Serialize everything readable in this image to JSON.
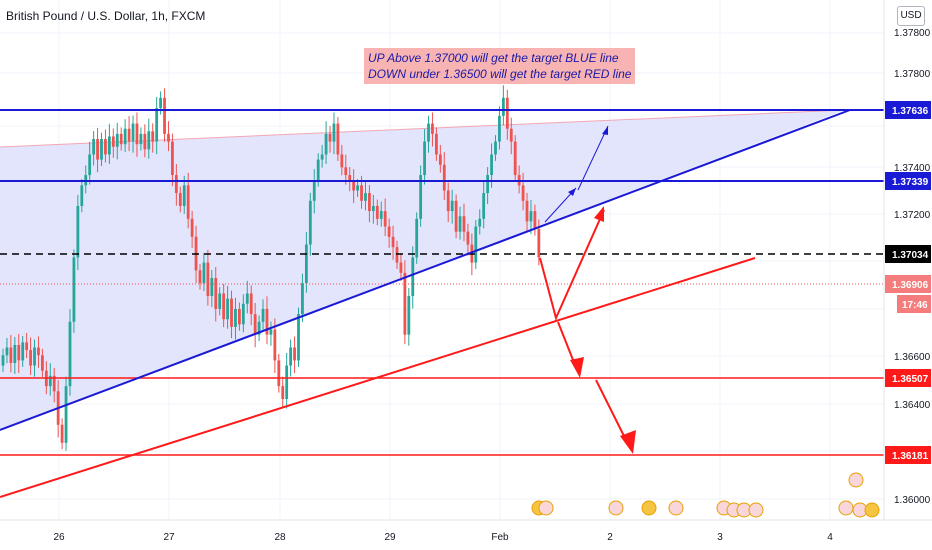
{
  "header": {
    "symbol": "British Pound / U.S. Dollar, 1h, FXCM",
    "currency": "USD"
  },
  "annotation": {
    "line1": "UP Above 1.37000 will get the target BLUE line",
    "line2": "DOWN under 1.36500 will get the target RED line"
  },
  "colors": {
    "up": "#26a69a",
    "down": "#ef5350",
    "blue_line": "#1a1ad6",
    "red_line": "#ff1a1a",
    "wedge_fill": "#d9dcfb"
  },
  "chart_data": {
    "type": "candlestick",
    "x_ticks": [
      "26",
      "27",
      "28",
      "29",
      "Feb",
      "2",
      "3",
      "4"
    ],
    "y_ticks": [
      "1.37800",
      "1.37400",
      "1.37200",
      "1.36600",
      "1.36400",
      "1.36000"
    ],
    "ylim": [
      1.3588,
      1.379
    ],
    "price_labels": [
      {
        "value": "1.37636",
        "style": "blue"
      },
      {
        "value": "1.37339",
        "style": "blue"
      },
      {
        "value": "1.37034",
        "style": "black"
      },
      {
        "value": "1.36906",
        "style": "red-light"
      },
      {
        "value": "17:46",
        "style": "red-light"
      },
      {
        "value": "1.36507",
        "style": "red"
      },
      {
        "value": "1.36181",
        "style": "red"
      }
    ],
    "horizontal_lines": [
      {
        "price": 1.37636,
        "color": "blue"
      },
      {
        "price": 1.37339,
        "color": "blue"
      },
      {
        "price": 1.37034,
        "color": "black",
        "dashed": true
      },
      {
        "price": 1.36507,
        "color": "red"
      },
      {
        "price": 1.36181,
        "color": "red"
      }
    ],
    "closes": [
      1.3652,
      1.3655,
      1.3649,
      1.3656,
      1.365,
      1.3657,
      1.3654,
      1.3648,
      1.3655,
      1.3652,
      1.3646,
      1.364,
      1.3644,
      1.3638,
      1.3625,
      1.3618,
      1.364,
      1.3665,
      1.369,
      1.371,
      1.3718,
      1.3722,
      1.373,
      1.3736,
      1.3728,
      1.3736,
      1.373,
      1.3737,
      1.3733,
      1.3738,
      1.3734,
      1.374,
      1.3735,
      1.3742,
      1.3734,
      1.3738,
      1.3732,
      1.3739,
      1.3735,
      1.3748,
      1.3752,
      1.3738,
      1.3735,
      1.3722,
      1.3715,
      1.371,
      1.3718,
      1.3705,
      1.3698,
      1.3685,
      1.368,
      1.3688,
      1.3675,
      1.3682,
      1.367,
      1.3676,
      1.3666,
      1.3674,
      1.3663,
      1.367,
      1.3664,
      1.3672,
      1.3676,
      1.3668,
      1.366,
      1.3665,
      1.367,
      1.366,
      1.3662,
      1.365,
      1.364,
      1.3635,
      1.3648,
      1.3655,
      1.365,
      1.3668,
      1.368,
      1.3695,
      1.3712,
      1.372,
      1.3728,
      1.373,
      1.3738,
      1.3735,
      1.3742,
      1.373,
      1.3725,
      1.3722,
      1.372,
      1.3716,
      1.3718,
      1.3712,
      1.3715,
      1.3708,
      1.371,
      1.3705,
      1.3708,
      1.3702,
      1.3698,
      1.3694,
      1.3688,
      1.3684,
      1.366,
      1.3675,
      1.369,
      1.3705,
      1.3722,
      1.3735,
      1.3742,
      1.3738,
      1.373,
      1.3726,
      1.3716,
      1.3708,
      1.3712,
      1.37,
      1.3706,
      1.37,
      1.3695,
      1.3688,
      1.3702,
      1.3705,
      1.3715,
      1.3722,
      1.373,
      1.3735,
      1.3745,
      1.3752,
      1.374,
      1.3735,
      1.3722,
      1.3718,
      1.3712,
      1.3704,
      1.3708,
      1.3701,
      1.369
    ],
    "pattern": "rising wedge with projected up (blue) and down (red) targets"
  }
}
